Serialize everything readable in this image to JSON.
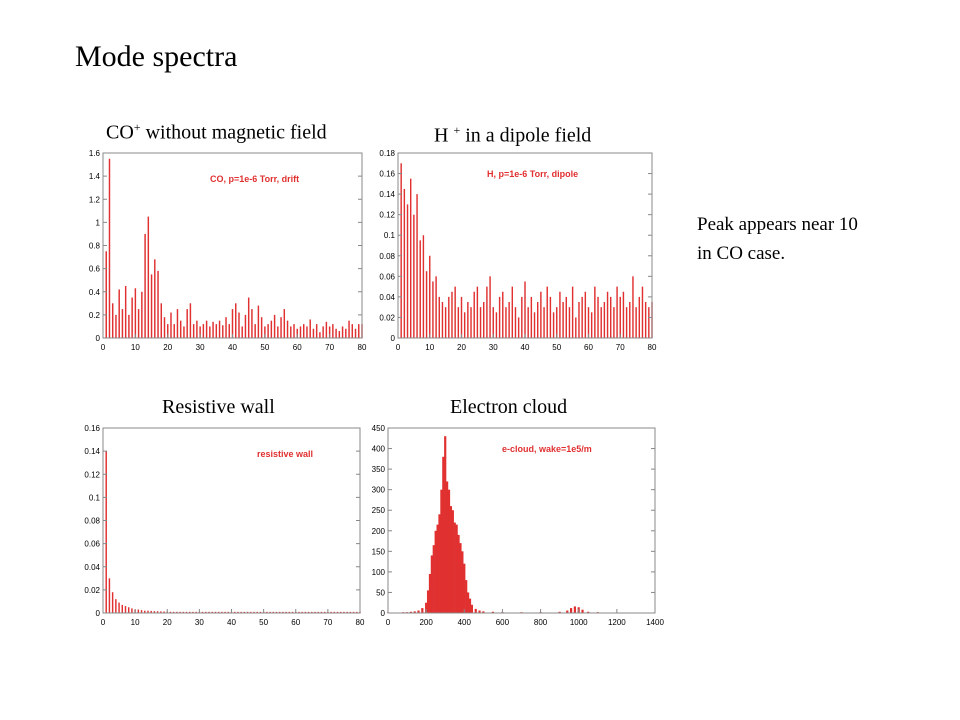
{
  "slide": {
    "title": "Mode spectra",
    "note_line1": "Peak appears near 10",
    "note_line2": "in CO case."
  },
  "captions": {
    "co_main": "CO",
    "co_sup": "+",
    "co_rest": " without magnetic field",
    "h_main": "H ",
    "h_sup": "+",
    "h_rest": " in a dipole field",
    "rw": "Resistive wall",
    "ec": "Electron cloud"
  },
  "colors": {
    "bar": "#e03030",
    "axis": "#888888",
    "legend": "#e03030"
  },
  "chart_data": [
    {
      "type": "bar",
      "legend": "CO, p=1e-6 Torr, drift",
      "ylim": [
        0,
        1.6
      ],
      "yticks": [
        0,
        0.2,
        0.4,
        0.6,
        0.8,
        1,
        1.2,
        1.4,
        1.6
      ],
      "xlim": [
        0,
        80
      ],
      "xticks": [
        0,
        10,
        20,
        30,
        40,
        50,
        60,
        70,
        80
      ],
      "x": [
        1,
        2,
        3,
        4,
        5,
        6,
        7,
        8,
        9,
        10,
        11,
        12,
        13,
        14,
        15,
        16,
        17,
        18,
        19,
        20,
        21,
        22,
        23,
        24,
        25,
        26,
        27,
        28,
        29,
        30,
        31,
        32,
        33,
        34,
        35,
        36,
        37,
        38,
        39,
        40,
        41,
        42,
        43,
        44,
        45,
        46,
        47,
        48,
        49,
        50,
        51,
        52,
        53,
        54,
        55,
        56,
        57,
        58,
        59,
        60,
        61,
        62,
        63,
        64,
        65,
        66,
        67,
        68,
        69,
        70,
        71,
        72,
        73,
        74,
        75,
        76,
        77,
        78,
        79,
        80
      ],
      "values": [
        0.75,
        1.55,
        0.3,
        0.2,
        0.42,
        0.25,
        0.45,
        0.2,
        0.35,
        0.43,
        0.25,
        0.4,
        0.9,
        1.05,
        0.55,
        0.68,
        0.58,
        0.3,
        0.18,
        0.12,
        0.22,
        0.12,
        0.25,
        0.15,
        0.1,
        0.25,
        0.3,
        0.12,
        0.15,
        0.1,
        0.12,
        0.15,
        0.1,
        0.14,
        0.12,
        0.15,
        0.11,
        0.18,
        0.12,
        0.25,
        0.3,
        0.22,
        0.1,
        0.2,
        0.35,
        0.25,
        0.12,
        0.28,
        0.18,
        0.1,
        0.12,
        0.15,
        0.2,
        0.1,
        0.18,
        0.25,
        0.15,
        0.1,
        0.12,
        0.08,
        0.1,
        0.12,
        0.1,
        0.16,
        0.08,
        0.12,
        0.05,
        0.1,
        0.14,
        0.1,
        0.12,
        0.08,
        0.06,
        0.1,
        0.08,
        0.15,
        0.12,
        0.08,
        0.12,
        0.12
      ]
    },
    {
      "type": "bar",
      "legend": "H, p=1e-6 Torr, dipole",
      "ylim": [
        0,
        0.18
      ],
      "yticks": [
        0,
        0.02,
        0.04,
        0.06,
        0.08,
        0.1,
        0.12,
        0.14,
        0.16,
        0.18
      ],
      "xlim": [
        0,
        80
      ],
      "xticks": [
        0,
        10,
        20,
        30,
        40,
        50,
        60,
        70,
        80
      ],
      "x": [
        1,
        2,
        3,
        4,
        5,
        6,
        7,
        8,
        9,
        10,
        11,
        12,
        13,
        14,
        15,
        16,
        17,
        18,
        19,
        20,
        21,
        22,
        23,
        24,
        25,
        26,
        27,
        28,
        29,
        30,
        31,
        32,
        33,
        34,
        35,
        36,
        37,
        38,
        39,
        40,
        41,
        42,
        43,
        44,
        45,
        46,
        47,
        48,
        49,
        50,
        51,
        52,
        53,
        54,
        55,
        56,
        57,
        58,
        59,
        60,
        61,
        62,
        63,
        64,
        65,
        66,
        67,
        68,
        69,
        70,
        71,
        72,
        73,
        74,
        75,
        76,
        77,
        78,
        79,
        80
      ],
      "values": [
        0.17,
        0.145,
        0.13,
        0.155,
        0.12,
        0.14,
        0.095,
        0.1,
        0.065,
        0.08,
        0.055,
        0.06,
        0.04,
        0.035,
        0.03,
        0.04,
        0.045,
        0.05,
        0.03,
        0.04,
        0.025,
        0.035,
        0.03,
        0.045,
        0.05,
        0.03,
        0.035,
        0.05,
        0.06,
        0.03,
        0.025,
        0.04,
        0.045,
        0.03,
        0.035,
        0.05,
        0.03,
        0.02,
        0.04,
        0.055,
        0.03,
        0.04,
        0.025,
        0.035,
        0.045,
        0.03,
        0.05,
        0.04,
        0.025,
        0.03,
        0.045,
        0.035,
        0.04,
        0.03,
        0.05,
        0.02,
        0.035,
        0.04,
        0.045,
        0.03,
        0.025,
        0.05,
        0.04,
        0.03,
        0.035,
        0.045,
        0.04,
        0.03,
        0.05,
        0.04,
        0.045,
        0.03,
        0.035,
        0.06,
        0.03,
        0.04,
        0.05,
        0.035,
        0.03,
        0.035
      ]
    },
    {
      "type": "bar",
      "legend": "resistive wall",
      "ylim": [
        0,
        0.16
      ],
      "yticks": [
        0,
        0.02,
        0.04,
        0.06,
        0.08,
        0.1,
        0.12,
        0.14,
        0.16
      ],
      "xlim": [
        0,
        80
      ],
      "xticks": [
        0,
        10,
        20,
        30,
        40,
        50,
        60,
        70,
        80
      ],
      "x": [
        1,
        2,
        3,
        4,
        5,
        6,
        7,
        8,
        9,
        10,
        11,
        12,
        13,
        14,
        15,
        16,
        17,
        18,
        19,
        20,
        21,
        22,
        23,
        24,
        25,
        26,
        27,
        28,
        29,
        30,
        31,
        32,
        33,
        34,
        35,
        36,
        37,
        38,
        39,
        40,
        41,
        42,
        43,
        44,
        45,
        46,
        47,
        48,
        49,
        50,
        51,
        52,
        53,
        54,
        55,
        56,
        57,
        58,
        59,
        60,
        61,
        62,
        63,
        64,
        65,
        66,
        67,
        68,
        69,
        70,
        71,
        72,
        73,
        74,
        75,
        76,
        77,
        78,
        79,
        80
      ],
      "values": [
        0.14,
        0.03,
        0.018,
        0.012,
        0.009,
        0.007,
        0.006,
        0.005,
        0.004,
        0.003,
        0.003,
        0.0025,
        0.002,
        0.002,
        0.0018,
        0.0016,
        0.0015,
        0.0014,
        0.0013,
        0.0012,
        0.0011,
        0.001,
        0.001,
        0.001,
        0.001,
        0.001,
        0.001,
        0.001,
        0.001,
        0.001,
        0.001,
        0.001,
        0.001,
        0.001,
        0.001,
        0.001,
        0.001,
        0.001,
        0.001,
        0.001,
        0.001,
        0.001,
        0.001,
        0.001,
        0.001,
        0.001,
        0.001,
        0.001,
        0.001,
        0.001,
        0.001,
        0.001,
        0.001,
        0.001,
        0.001,
        0.001,
        0.001,
        0.001,
        0.001,
        0.001,
        0.001,
        0.001,
        0.001,
        0.001,
        0.001,
        0.001,
        0.001,
        0.001,
        0.001,
        0.001,
        0.001,
        0.001,
        0.001,
        0.001,
        0.001,
        0.001,
        0.001,
        0.001,
        0.001,
        0.001
      ]
    },
    {
      "type": "bar",
      "legend": "e-cloud, wake=1e5/m",
      "ylim": [
        0,
        450
      ],
      "yticks": [
        0,
        50,
        100,
        150,
        200,
        250,
        300,
        350,
        400,
        450
      ],
      "xlim": [
        0,
        1400
      ],
      "xticks": [
        0,
        200,
        400,
        600,
        800,
        1000,
        1200,
        1400
      ],
      "x": [
        0,
        20,
        40,
        60,
        80,
        100,
        120,
        140,
        160,
        180,
        200,
        210,
        220,
        230,
        240,
        250,
        260,
        270,
        280,
        290,
        300,
        310,
        320,
        330,
        340,
        350,
        360,
        370,
        380,
        390,
        400,
        410,
        420,
        430,
        440,
        460,
        480,
        500,
        550,
        600,
        700,
        800,
        900,
        940,
        960,
        980,
        1000,
        1020,
        1050,
        1100,
        1150,
        1200,
        1250
      ],
      "values": [
        0,
        1,
        1,
        1,
        2,
        2,
        3,
        4,
        6,
        12,
        25,
        55,
        95,
        140,
        165,
        200,
        215,
        240,
        300,
        380,
        430,
        320,
        300,
        260,
        250,
        220,
        215,
        190,
        170,
        150,
        120,
        80,
        50,
        35,
        20,
        10,
        6,
        4,
        3,
        2,
        2,
        2,
        3,
        6,
        12,
        16,
        14,
        8,
        3,
        2,
        1,
        1,
        1
      ]
    }
  ]
}
